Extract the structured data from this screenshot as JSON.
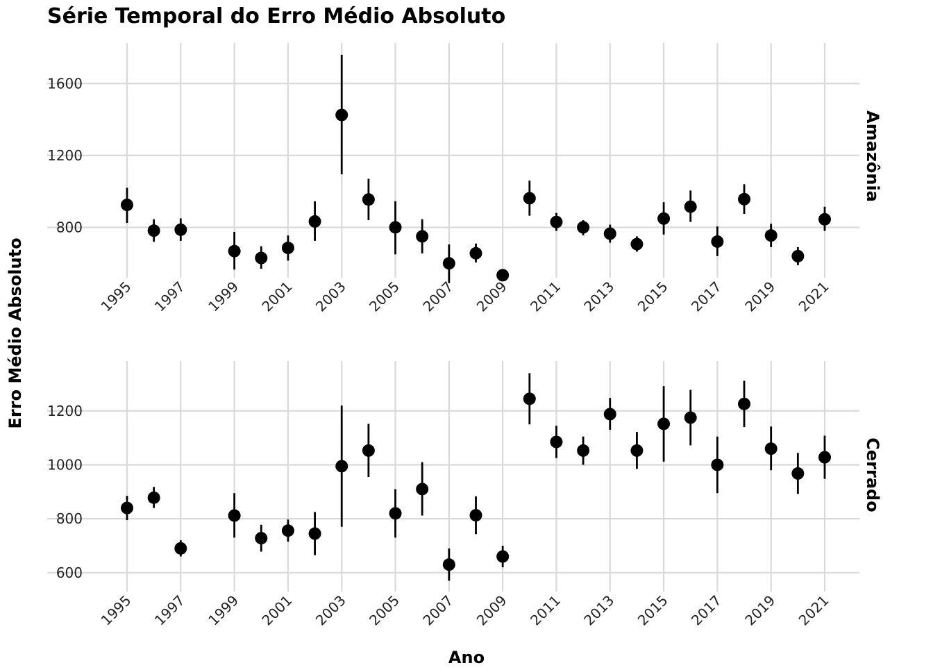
{
  "chart_data": {
    "type": "scatter",
    "title": "Série Temporal do Erro Médio Absoluto",
    "xlabel": "Ano",
    "ylabel": "Erro Médio Absoluto",
    "x_ticks": [
      "1995",
      "1997",
      "1999",
      "2001",
      "2003",
      "2005",
      "2007",
      "2009",
      "2011",
      "2013",
      "2015",
      "2017",
      "2019",
      "2021"
    ],
    "grid": true,
    "panels": [
      {
        "label": "Amazônia",
        "y_ticks": [
          800,
          1200,
          1600
        ],
        "ylim": [
          520,
          1825
        ],
        "points": [
          {
            "x": 1995,
            "y": 925,
            "lo": 825,
            "hi": 1020
          },
          {
            "x": 1996,
            "y": 782,
            "lo": 720,
            "hi": 845
          },
          {
            "x": 1997,
            "y": 787,
            "lo": 725,
            "hi": 850
          },
          {
            "x": 1999,
            "y": 668,
            "lo": 565,
            "hi": 775
          },
          {
            "x": 2000,
            "y": 630,
            "lo": 570,
            "hi": 695
          },
          {
            "x": 2001,
            "y": 686,
            "lo": 615,
            "hi": 755
          },
          {
            "x": 2002,
            "y": 833,
            "lo": 725,
            "hi": 945
          },
          {
            "x": 2003,
            "y": 1425,
            "lo": 1095,
            "hi": 1760
          },
          {
            "x": 2004,
            "y": 955,
            "lo": 840,
            "hi": 1070
          },
          {
            "x": 2005,
            "y": 800,
            "lo": 650,
            "hi": 945
          },
          {
            "x": 2006,
            "y": 750,
            "lo": 655,
            "hi": 845
          },
          {
            "x": 2007,
            "y": 600,
            "lo": 490,
            "hi": 705
          },
          {
            "x": 2008,
            "y": 656,
            "lo": 605,
            "hi": 710
          },
          {
            "x": 2009,
            "y": 534,
            "lo": 505,
            "hi": 565
          },
          {
            "x": 2010,
            "y": 962,
            "lo": 865,
            "hi": 1060
          },
          {
            "x": 2011,
            "y": 830,
            "lo": 780,
            "hi": 880
          },
          {
            "x": 2012,
            "y": 800,
            "lo": 755,
            "hi": 840
          },
          {
            "x": 2013,
            "y": 765,
            "lo": 715,
            "hi": 815
          },
          {
            "x": 2014,
            "y": 707,
            "lo": 665,
            "hi": 750
          },
          {
            "x": 2015,
            "y": 849,
            "lo": 760,
            "hi": 940
          },
          {
            "x": 2016,
            "y": 915,
            "lo": 830,
            "hi": 1005
          },
          {
            "x": 2017,
            "y": 721,
            "lo": 640,
            "hi": 805
          },
          {
            "x": 2018,
            "y": 957,
            "lo": 875,
            "hi": 1040
          },
          {
            "x": 2019,
            "y": 755,
            "lo": 690,
            "hi": 820
          },
          {
            "x": 2020,
            "y": 640,
            "lo": 590,
            "hi": 690
          },
          {
            "x": 2021,
            "y": 845,
            "lo": 780,
            "hi": 915
          }
        ]
      },
      {
        "label": "Cerrado",
        "y_ticks": [
          600,
          800,
          1000,
          1200
        ],
        "ylim": [
          530,
          1385
        ],
        "points": [
          {
            "x": 1995,
            "y": 840,
            "lo": 795,
            "hi": 885
          },
          {
            "x": 1996,
            "y": 878,
            "lo": 840,
            "hi": 918
          },
          {
            "x": 1997,
            "y": 690,
            "lo": 660,
            "hi": 720
          },
          {
            "x": 1999,
            "y": 812,
            "lo": 730,
            "hi": 895
          },
          {
            "x": 2000,
            "y": 728,
            "lo": 678,
            "hi": 778
          },
          {
            "x": 2001,
            "y": 756,
            "lo": 715,
            "hi": 797
          },
          {
            "x": 2002,
            "y": 745,
            "lo": 665,
            "hi": 825
          },
          {
            "x": 2003,
            "y": 995,
            "lo": 770,
            "hi": 1220
          },
          {
            "x": 2004,
            "y": 1053,
            "lo": 955,
            "hi": 1152
          },
          {
            "x": 2005,
            "y": 820,
            "lo": 730,
            "hi": 910
          },
          {
            "x": 2006,
            "y": 910,
            "lo": 812,
            "hi": 1010
          },
          {
            "x": 2007,
            "y": 630,
            "lo": 570,
            "hi": 690
          },
          {
            "x": 2008,
            "y": 813,
            "lo": 743,
            "hi": 883
          },
          {
            "x": 2009,
            "y": 660,
            "lo": 620,
            "hi": 700
          },
          {
            "x": 2010,
            "y": 1245,
            "lo": 1150,
            "hi": 1340
          },
          {
            "x": 2011,
            "y": 1085,
            "lo": 1025,
            "hi": 1145
          },
          {
            "x": 2012,
            "y": 1053,
            "lo": 1000,
            "hi": 1105
          },
          {
            "x": 2013,
            "y": 1188,
            "lo": 1130,
            "hi": 1248
          },
          {
            "x": 2014,
            "y": 1053,
            "lo": 985,
            "hi": 1122
          },
          {
            "x": 2015,
            "y": 1152,
            "lo": 1012,
            "hi": 1292
          },
          {
            "x": 2016,
            "y": 1175,
            "lo": 1072,
            "hi": 1278
          },
          {
            "x": 2017,
            "y": 1000,
            "lo": 895,
            "hi": 1105
          },
          {
            "x": 2018,
            "y": 1226,
            "lo": 1140,
            "hi": 1312
          },
          {
            "x": 2019,
            "y": 1060,
            "lo": 980,
            "hi": 1142
          },
          {
            "x": 2020,
            "y": 968,
            "lo": 892,
            "hi": 1044
          },
          {
            "x": 2021,
            "y": 1028,
            "lo": 948,
            "hi": 1108
          }
        ]
      }
    ]
  }
}
